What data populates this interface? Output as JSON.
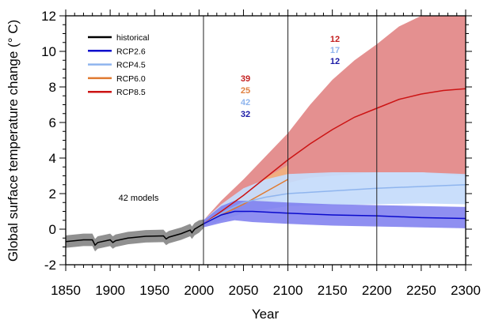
{
  "chart_data": {
    "type": "area",
    "xlabel": "Year",
    "ylabel": "Global surface temperature change (° C)",
    "xlim": [
      1850,
      2300
    ],
    "ylim": [
      -2,
      12
    ],
    "xticks": [
      1850,
      1900,
      1950,
      2000,
      2050,
      2100,
      2150,
      2200,
      2250,
      2300
    ],
    "yticks": [
      -2,
      0,
      2,
      4,
      6,
      8,
      10,
      12
    ],
    "vertical_lines": [
      2005,
      2100,
      2200
    ],
    "grid": false,
    "legend_placement": "top-left",
    "series": [
      {
        "name": "historical",
        "color": "#000000",
        "band_color": "#8a8a8a",
        "x": [
          1850,
          1860,
          1870,
          1880,
          1883,
          1886,
          1900,
          1903,
          1906,
          1920,
          1940,
          1960,
          1963,
          1966,
          1980,
          1990,
          1992,
          1995,
          2000,
          2005
        ],
        "mean": [
          -0.7,
          -0.65,
          -0.6,
          -0.6,
          -0.9,
          -0.75,
          -0.6,
          -0.75,
          -0.65,
          -0.5,
          -0.4,
          -0.38,
          -0.55,
          -0.45,
          -0.25,
          -0.05,
          -0.2,
          0.0,
          0.15,
          0.3
        ],
        "upper": [
          -0.35,
          -0.3,
          -0.25,
          -0.25,
          -0.55,
          -0.4,
          -0.25,
          -0.4,
          -0.3,
          -0.15,
          -0.05,
          -0.03,
          -0.2,
          -0.1,
          0.1,
          0.3,
          0.15,
          0.35,
          0.5,
          0.55
        ],
        "lower": [
          -1.05,
          -1.0,
          -0.95,
          -0.95,
          -1.25,
          -1.1,
          -0.95,
          -1.1,
          -1.0,
          -0.85,
          -0.75,
          -0.73,
          -0.9,
          -0.8,
          -0.6,
          -0.4,
          -0.55,
          -0.35,
          -0.2,
          0.05
        ]
      },
      {
        "name": "RCP8.5",
        "color": "#cc1414",
        "band_color": "#e38a8a",
        "x": [
          2005,
          2025,
          2050,
          2075,
          2100,
          2125,
          2150,
          2175,
          2200,
          2225,
          2250,
          2275,
          2300
        ],
        "mean": [
          0.3,
          1.0,
          1.9,
          2.9,
          3.9,
          4.8,
          5.6,
          6.3,
          6.8,
          7.3,
          7.6,
          7.8,
          7.9
        ],
        "upper": [
          0.5,
          1.6,
          2.8,
          4.1,
          5.4,
          7.0,
          8.4,
          9.5,
          10.4,
          11.4,
          12,
          12,
          12
        ],
        "lower": [
          0.15,
          0.6,
          1.3,
          1.9,
          2.6,
          2.9,
          3.0,
          3.1,
          3.2,
          3.2,
          3.2,
          3.1,
          3.0
        ]
      },
      {
        "name": "RCP6.0",
        "color": "#e07a30",
        "band_color": "#f0b080",
        "x": [
          2005,
          2025,
          2050,
          2075,
          2100
        ],
        "mean": [
          0.3,
          0.8,
          1.4,
          2.1,
          2.8
        ],
        "upper": [
          0.5,
          1.2,
          2.0,
          2.9,
          3.6
        ],
        "lower": [
          0.15,
          0.5,
          1.0,
          1.5,
          2.1
        ]
      },
      {
        "name": "RCP4.5",
        "color": "#8fb5ee",
        "band_color": "#c6dcfb",
        "x": [
          2005,
          2025,
          2050,
          2075,
          2100,
          2150,
          2200,
          2250,
          2300
        ],
        "mean": [
          0.3,
          0.9,
          1.5,
          1.8,
          2.0,
          2.15,
          2.3,
          2.4,
          2.5
        ],
        "upper": [
          0.5,
          1.4,
          2.3,
          2.8,
          3.1,
          3.2,
          3.2,
          3.2,
          3.1
        ],
        "lower": [
          0.15,
          0.5,
          0.9,
          1.1,
          1.3,
          1.35,
          1.4,
          1.45,
          1.4
        ]
      },
      {
        "name": "RCP2.6",
        "color": "#0a0acc",
        "band_color": "#7b7bef",
        "x": [
          2005,
          2025,
          2040,
          2060,
          2100,
          2150,
          2200,
          2250,
          2300
        ],
        "mean": [
          0.3,
          0.8,
          1.0,
          1.0,
          0.9,
          0.8,
          0.75,
          0.65,
          0.6
        ],
        "upper": [
          0.5,
          1.3,
          1.6,
          1.6,
          1.5,
          1.4,
          1.35,
          1.3,
          1.25
        ],
        "lower": [
          0.1,
          0.35,
          0.5,
          0.4,
          0.3,
          0.2,
          0.15,
          0.1,
          0.05
        ]
      }
    ],
    "annotations": {
      "historical_models": "42 models",
      "models_2006_2100": [
        {
          "text": "39",
          "color": "#c42020"
        },
        {
          "text": "25",
          "color": "#e08040"
        },
        {
          "text": "42",
          "color": "#8fb5ee"
        },
        {
          "text": "32",
          "color": "#1a1aa6"
        }
      ],
      "models_2101_2300": [
        {
          "text": "12",
          "color": "#c42020"
        },
        {
          "text": "17",
          "color": "#8fb5ee"
        },
        {
          "text": "12",
          "color": "#1a1aa6"
        }
      ]
    }
  }
}
